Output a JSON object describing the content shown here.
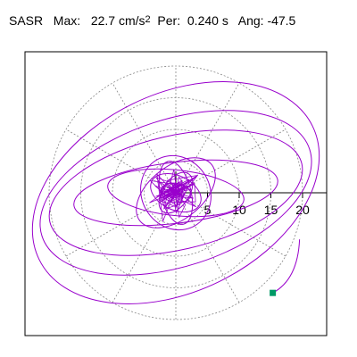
{
  "header": {
    "station": "SASR",
    "max_label": "Max:",
    "max_value": "22.7",
    "max_unit": "cm/s",
    "max_unit_sup": "2",
    "per_label": "Per:",
    "per_value": "0.240 s",
    "ang_label": "Ang:",
    "ang_value": "-47.5"
  },
  "chart_data": {
    "type": "scatter",
    "title": "",
    "xlabel": "",
    "ylabel": "",
    "polar_grid": true,
    "grid_ring_radii": [
      5,
      10,
      15,
      20
    ],
    "grid_spoke_step_deg": 30,
    "x_ticks": [
      "5",
      "10",
      "15",
      "20"
    ],
    "xlim": [
      -24,
      24
    ],
    "ylim": [
      -22.5,
      22.5
    ],
    "trace_color": "#9900cc",
    "end_marker_color": "#009966",
    "grid_color": "#888888",
    "end_point": {
      "x": 15.3,
      "y": -15.8
    },
    "orbits": [
      {
        "a": 24.0,
        "b": 15.6,
        "rot_deg": -26
      },
      {
        "a": 22.2,
        "b": 11.6,
        "rot_deg": -18
      },
      {
        "a": 20.4,
        "b": 9.0,
        "rot_deg": -13
      },
      {
        "a": 16.2,
        "b": 4.8,
        "rot_deg": -7
      },
      {
        "a": 10.8,
        "b": 3.6,
        "rot_deg": 6
      },
      {
        "a": 7.2,
        "b": 4.2,
        "rot_deg": -38
      },
      {
        "a": 6.0,
        "b": 5.4,
        "rot_deg": 60
      },
      {
        "a": 5.1,
        "b": 2.4,
        "rot_deg": 76
      },
      {
        "a": 4.2,
        "b": 2.7,
        "rot_deg": 25
      },
      {
        "a": 3.6,
        "b": 2.1,
        "rot_deg": -56
      },
      {
        "a": 2.4,
        "b": 1.5,
        "rot_deg": 10
      }
    ]
  }
}
